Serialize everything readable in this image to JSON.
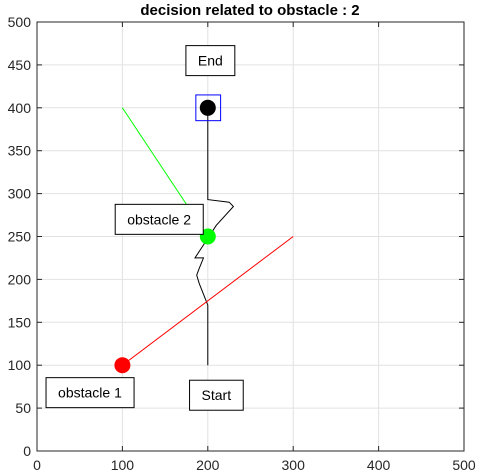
{
  "chart_data": {
    "type": "line",
    "title": "decision related to obstacle  : 2",
    "xlabel": "",
    "ylabel": "",
    "xlim": [
      0,
      500
    ],
    "ylim": [
      0,
      500
    ],
    "xticks": [
      0,
      100,
      200,
      300,
      400,
      500
    ],
    "yticks": [
      0,
      50,
      100,
      150,
      200,
      250,
      300,
      350,
      400,
      450,
      500
    ],
    "grid": true,
    "series": [
      {
        "color": "#000000",
        "points": [
          [
            200,
            100
          ],
          [
            200,
            170
          ],
          [
            190,
            195
          ],
          [
            187,
            205
          ],
          [
            190,
            213
          ],
          [
            195,
            225
          ],
          [
            185,
            225
          ],
          [
            210,
            263
          ],
          [
            230,
            285
          ],
          [
            225,
            290
          ],
          [
            200,
            293
          ],
          [
            200,
            340
          ],
          [
            200,
            400
          ]
        ]
      },
      {
        "color": "#ff0000",
        "points": [
          [
            100,
            100
          ],
          [
            300,
            250
          ]
        ]
      },
      {
        "color": "#00ff00",
        "points": [
          [
            100,
            400
          ],
          [
            200,
            250
          ]
        ]
      }
    ],
    "markers": [
      {
        "name": "obstacle 1 marker",
        "x": 100,
        "y": 100,
        "color": "#ff0000"
      },
      {
        "name": "obstacle 2 marker",
        "x": 200,
        "y": 250,
        "color": "#00ff00"
      },
      {
        "name": "end marker",
        "x": 200,
        "y": 400,
        "color": "#000000"
      }
    ],
    "target_box": {
      "x": [
        186,
        215
      ],
      "y": [
        385,
        415
      ],
      "color": "#0000ff"
    },
    "annotations": [
      {
        "name": "start",
        "text": "Start",
        "x": 210,
        "y": 65
      },
      {
        "name": "end",
        "text": "End",
        "x": 203,
        "y": 455
      },
      {
        "name": "obstacle-1",
        "text": "obstacle 1",
        "x": 62,
        "y": 68
      },
      {
        "name": "obstacle-2",
        "text": "obstacle 2",
        "x": 143,
        "y": 270
      }
    ]
  }
}
